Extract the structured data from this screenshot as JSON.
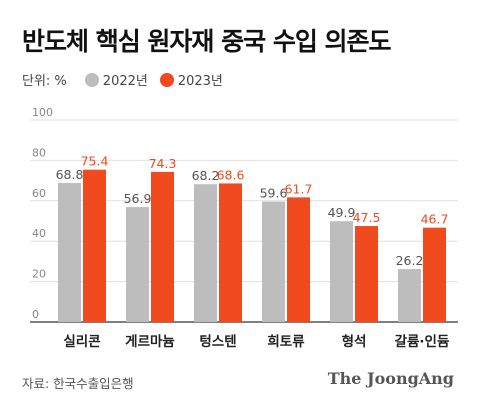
{
  "title": "반도체 핵심 원자재 중국 수입 의존도",
  "unit_label": "단위: %",
  "source": "자료: 한국수출입은행",
  "brand": "The JoongAng",
  "colors": {
    "y2022": "#bdbdbd",
    "y2023": "#f04a1e",
    "grid": "#e0e0e0",
    "axis": "#333333"
  },
  "chart_data": {
    "type": "bar",
    "categories": [
      "실리콘",
      "게르마늄",
      "텅스텐",
      "희토류",
      "형석",
      "갈륨·인듐"
    ],
    "series": [
      {
        "name": "2022년",
        "values": [
          68.8,
          56.9,
          68.2,
          59.6,
          49.9,
          26.2
        ]
      },
      {
        "name": "2023년",
        "values": [
          75.4,
          74.3,
          68.6,
          61.7,
          47.5,
          46.7
        ]
      }
    ],
    "ylim": [
      0,
      100
    ],
    "yticks": [
      0,
      20,
      40,
      60,
      80,
      100
    ],
    "grid": true,
    "data_labels": true
  }
}
